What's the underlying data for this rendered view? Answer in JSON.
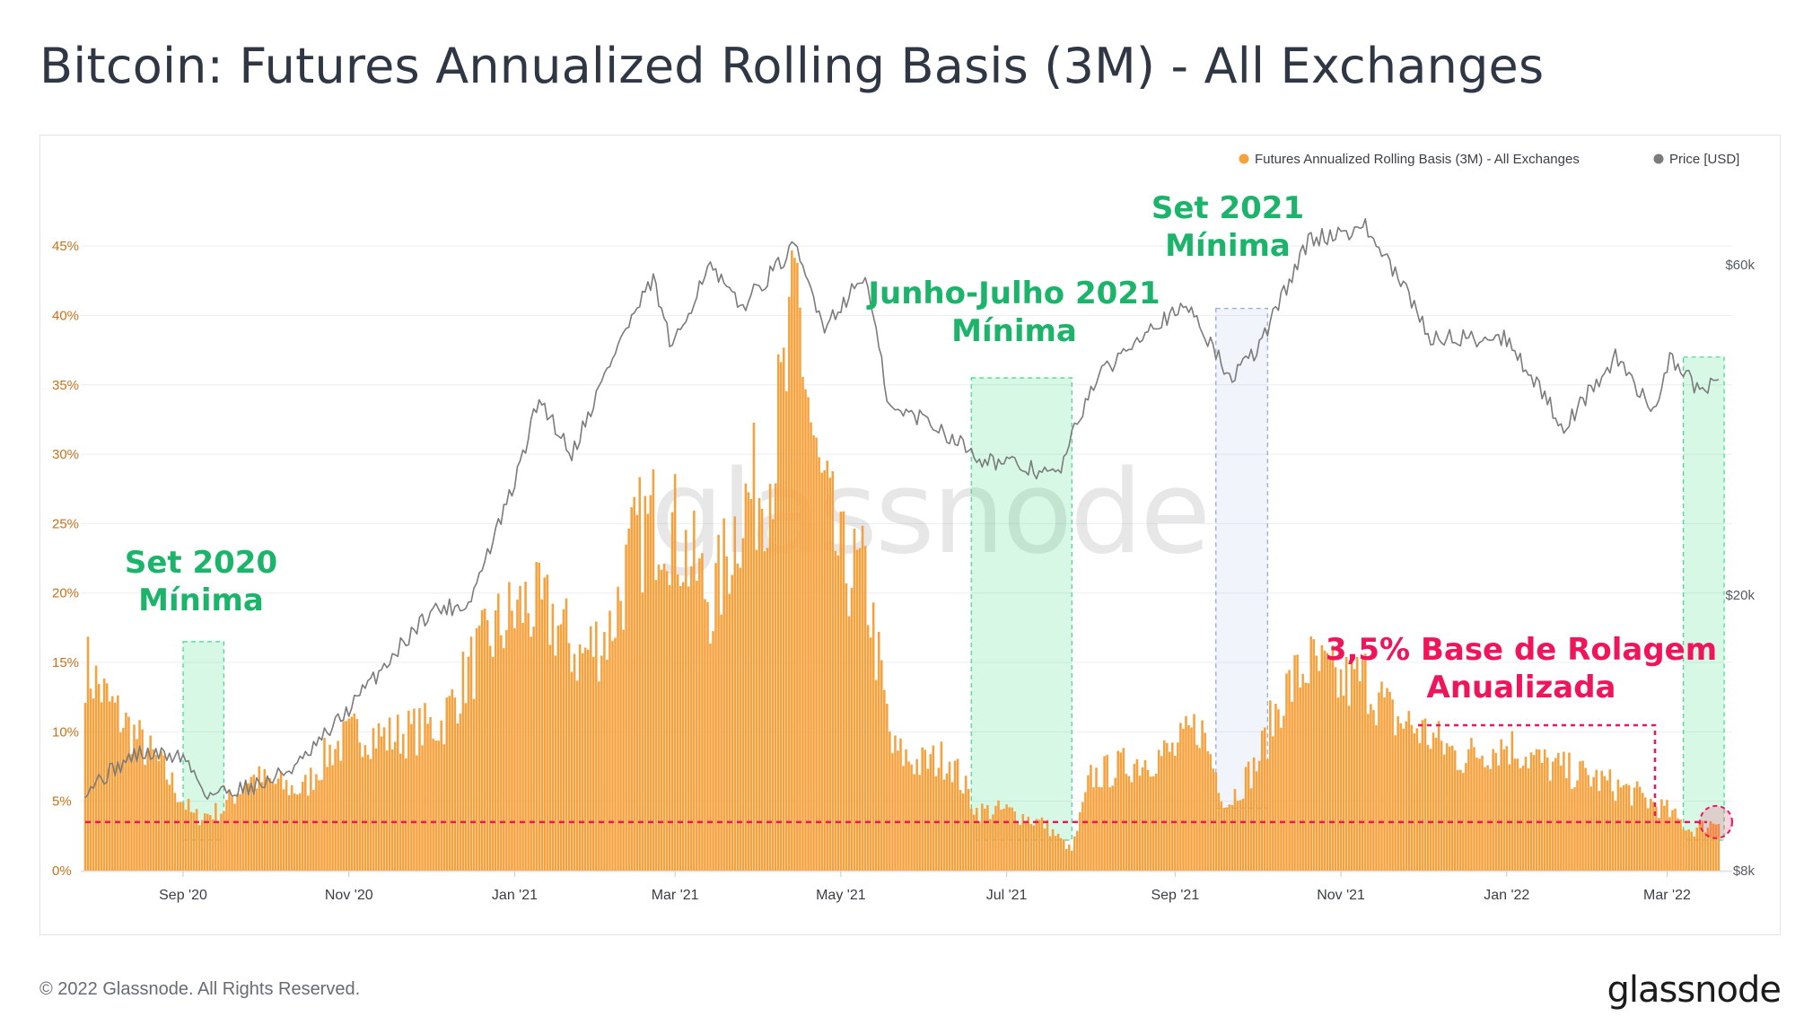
{
  "title": "Bitcoin: Futures Annualized Rolling Basis (3M) - All Exchanges",
  "footer": "© 2022 Glassnode. All Rights Reserved.",
  "brand": "glassnode",
  "watermark": "glassnode",
  "colors": {
    "basis": "#f7a13d",
    "price": "#7b7b7b",
    "highlight_green": "#3ddc84",
    "highlight_blue": "#8fa3dd",
    "annotation_green": "#1cb36a",
    "annotation_pink": "#f0145a"
  },
  "chart_data": {
    "type": "bar",
    "title": "Bitcoin: Futures Annualized Rolling Basis (3M) - All Exchanges",
    "legend": {
      "placement": "top-right",
      "items": [
        {
          "label": "Futures Annualized Rolling Basis (3M) - All Exchanges",
          "color": "#f7a13d"
        },
        {
          "label": "Price [USD]",
          "color": "#7b7b7b"
        }
      ]
    },
    "x_ticks": [
      "Sep '20",
      "Nov '20",
      "Jan '21",
      "Mar '21",
      "May '21",
      "Jul '21",
      "Sep '21",
      "Nov '21",
      "Jan '22",
      "Mar '22"
    ],
    "x_range": [
      "2020-07-27",
      "2022-03-20"
    ],
    "y_left": {
      "ticks": [
        "0%",
        "5%",
        "10%",
        "15%",
        "20%",
        "25%",
        "30%",
        "35%",
        "40%",
        "45%"
      ],
      "range": [
        0,
        48.5
      ],
      "unit": "%"
    },
    "y_right": {
      "ticks": [
        "$8k",
        "$20k",
        "$60k"
      ],
      "range": [
        8000,
        75000
      ],
      "scale": "log",
      "unit": "USD"
    },
    "grid": true,
    "series": [
      {
        "name": "Futures Annualized Rolling Basis (3M) - All Exchanges",
        "kind": "bar",
        "points": [
          [
            "2020-07-27",
            15.5
          ],
          [
            "2020-08-05",
            12.5
          ],
          [
            "2020-08-15",
            10.0
          ],
          [
            "2020-08-25",
            7.5
          ],
          [
            "2020-09-05",
            4.0
          ],
          [
            "2020-09-15",
            4.5
          ],
          [
            "2020-09-25",
            7.0
          ],
          [
            "2020-10-05",
            6.5
          ],
          [
            "2020-10-15",
            6.0
          ],
          [
            "2020-10-25",
            9.0
          ],
          [
            "2020-11-05",
            10.5
          ],
          [
            "2020-11-15",
            10.0
          ],
          [
            "2020-11-25",
            10.5
          ],
          [
            "2020-12-05",
            11.0
          ],
          [
            "2020-12-15",
            15.0
          ],
          [
            "2020-12-25",
            18.0
          ],
          [
            "2021-01-05",
            20.0
          ],
          [
            "2021-01-15",
            19.0
          ],
          [
            "2021-01-25",
            16.0
          ],
          [
            "2021-02-05",
            18.0
          ],
          [
            "2021-02-15",
            25.0
          ],
          [
            "2021-02-25",
            27.0
          ],
          [
            "2021-03-05",
            24.0
          ],
          [
            "2021-03-15",
            20.0
          ],
          [
            "2021-03-25",
            27.0
          ],
          [
            "2021-04-05",
            30.0
          ],
          [
            "2021-04-12",
            38.0
          ],
          [
            "2021-04-15",
            43.0
          ],
          [
            "2021-04-22",
            30.0
          ],
          [
            "2021-05-01",
            23.0
          ],
          [
            "2021-05-10",
            22.0
          ],
          [
            "2021-05-20",
            9.0
          ],
          [
            "2021-05-30",
            8.0
          ],
          [
            "2021-06-10",
            8.5
          ],
          [
            "2021-06-20",
            4.5
          ],
          [
            "2021-07-01",
            4.5
          ],
          [
            "2021-07-15",
            3.5
          ],
          [
            "2021-07-25",
            1.5
          ],
          [
            "2021-08-01",
            7.0
          ],
          [
            "2021-08-15",
            8.0
          ],
          [
            "2021-09-01",
            9.0
          ],
          [
            "2021-09-10",
            11.0
          ],
          [
            "2021-09-20",
            5.0
          ],
          [
            "2021-10-01",
            8.0
          ],
          [
            "2021-10-10",
            13.0
          ],
          [
            "2021-10-20",
            15.5
          ],
          [
            "2021-11-01",
            14.0
          ],
          [
            "2021-11-10",
            14.5
          ],
          [
            "2021-11-20",
            11.5
          ],
          [
            "2021-12-01",
            10.5
          ],
          [
            "2021-12-15",
            8.5
          ],
          [
            "2022-01-01",
            9.5
          ],
          [
            "2022-01-15",
            8.0
          ],
          [
            "2022-02-01",
            7.0
          ],
          [
            "2022-02-15",
            6.0
          ],
          [
            "2022-03-01",
            4.5
          ],
          [
            "2022-03-10",
            3.0
          ],
          [
            "2022-03-20",
            3.8
          ]
        ]
      },
      {
        "name": "Price [USD]",
        "kind": "line",
        "points": [
          [
            "2020-07-27",
            10500
          ],
          [
            "2020-08-15",
            11800
          ],
          [
            "2020-09-01",
            11700
          ],
          [
            "2020-09-10",
            10300
          ],
          [
            "2020-10-01",
            10700
          ],
          [
            "2020-10-15",
            11500
          ],
          [
            "2020-11-01",
            13700
          ],
          [
            "2020-11-15",
            16000
          ],
          [
            "2020-12-01",
            19000
          ],
          [
            "2020-12-15",
            19400
          ],
          [
            "2021-01-01",
            29000
          ],
          [
            "2021-01-10",
            38500
          ],
          [
            "2021-01-22",
            32000
          ],
          [
            "2021-02-08",
            46000
          ],
          [
            "2021-02-21",
            57000
          ],
          [
            "2021-02-28",
            45000
          ],
          [
            "2021-03-13",
            60000
          ],
          [
            "2021-03-25",
            52000
          ],
          [
            "2021-04-14",
            63500
          ],
          [
            "2021-04-25",
            49000
          ],
          [
            "2021-05-10",
            58000
          ],
          [
            "2021-05-19",
            37000
          ],
          [
            "2021-06-01",
            36000
          ],
          [
            "2021-06-22",
            31500
          ],
          [
            "2021-07-20",
            29800
          ],
          [
            "2021-08-01",
            40000
          ],
          [
            "2021-08-22",
            49000
          ],
          [
            "2021-09-07",
            52000
          ],
          [
            "2021-09-21",
            41000
          ],
          [
            "2021-10-01",
            45000
          ],
          [
            "2021-10-20",
            65000
          ],
          [
            "2021-11-10",
            68000
          ],
          [
            "2021-11-26",
            54000
          ],
          [
            "2021-12-04",
            47000
          ],
          [
            "2022-01-01",
            47000
          ],
          [
            "2022-01-22",
            35000
          ],
          [
            "2022-02-10",
            44000
          ],
          [
            "2022-02-24",
            37000
          ],
          [
            "2022-03-02",
            44000
          ],
          [
            "2022-03-14",
            39000
          ],
          [
            "2022-03-20",
            41500
          ]
        ]
      }
    ],
    "annotations": [
      {
        "text": "Set 2020\nMínima",
        "type": "highlight",
        "range": [
          "2020-09-01",
          "2020-09-16"
        ],
        "top": 16.5,
        "bottom": 2.2,
        "color": "green"
      },
      {
        "text": "Junho-Julho 2021\nMínima",
        "type": "highlight",
        "range": [
          "2021-06-18",
          "2021-07-25"
        ],
        "top": 35.5,
        "bottom": 2.2,
        "color": "green"
      },
      {
        "text": "Set 2021\nMínima",
        "type": "highlight",
        "range": [
          "2021-09-16",
          "2021-10-05"
        ],
        "top": 40.5,
        "bottom": 4.5,
        "color": "blue"
      },
      {
        "text": "",
        "type": "highlight",
        "range": [
          "2022-03-07",
          "2022-03-22"
        ],
        "top": 37.0,
        "bottom": 2.2,
        "color": "green"
      },
      {
        "text": "3,5% Base de Rolagem\nAnualizada",
        "type": "reference_line",
        "value": 3.5,
        "color": "pink"
      }
    ]
  }
}
